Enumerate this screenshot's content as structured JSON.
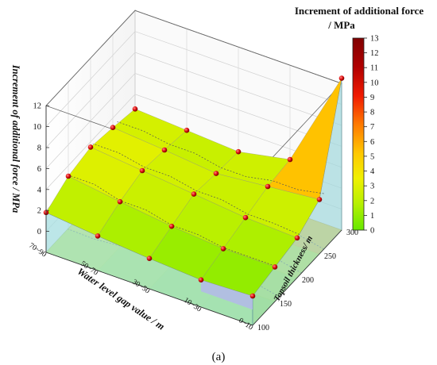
{
  "caption": "(a)",
  "chart_data": {
    "type": "surface3d",
    "zlabel": "Increment of additional force / MPa",
    "xlabel": "Water level gap value / m",
    "ylabel": "Topsoil thickness/ m",
    "x_categories": [
      "0~10",
      "10~30",
      "30~50",
      "50~70",
      "70~90"
    ],
    "y_values": [
      100,
      150,
      200,
      250,
      300
    ],
    "z_ticks": [
      "0",
      "2",
      "4",
      "6",
      "8",
      "10",
      "12"
    ],
    "zlim": [
      -2,
      12
    ],
    "colorbar": {
      "title_line1": "Increment of additional force",
      "title_line2": "/ MPa",
      "min": 0,
      "max": 13,
      "ticks": [
        "0",
        "1",
        "2",
        "3",
        "4",
        "5",
        "6",
        "7",
        "8",
        "9",
        "10",
        "11",
        "12",
        "13"
      ],
      "colors": [
        "#66e800",
        "#b8f000",
        "#f0f000",
        "#ffc800",
        "#ff7a00",
        "#f01a00",
        "#b00000",
        "#800000"
      ]
    },
    "z": [
      [
        0.8,
        1.3,
        1.8,
        3.2,
        4.5
      ],
      [
        0.6,
        1.3,
        2.0,
        2.7,
        3.0
      ],
      [
        0.9,
        1.7,
        2.5,
        2.2,
        2.0
      ],
      [
        1.3,
        2.3,
        3.0,
        2.7,
        2.3
      ],
      [
        1.8,
        3.0,
        3.5,
        3.1,
        2.6
      ]
    ],
    "z_corner_override": {
      "x_index": 0,
      "y_index": 4,
      "z": 12.5
    },
    "grid": true,
    "markers": "red-spheres"
  }
}
